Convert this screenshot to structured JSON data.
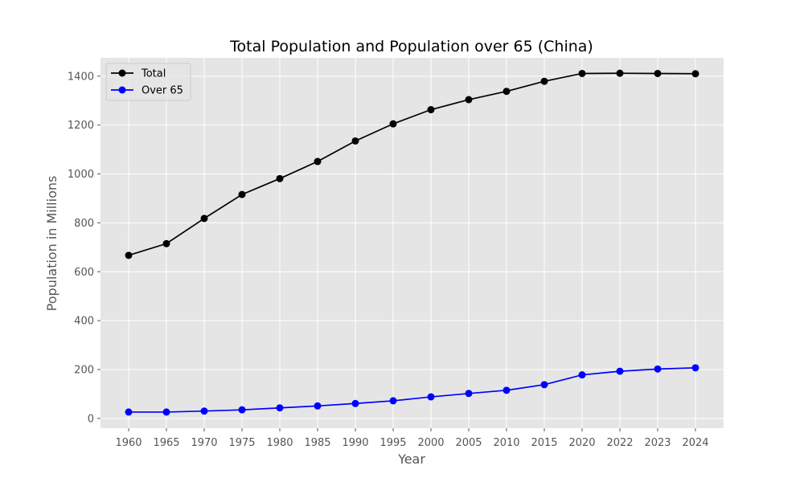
{
  "chart_data": {
    "type": "line",
    "title": "Total Population and Population over 65 (China)",
    "xlabel": "Year",
    "ylabel": "Population in Millions",
    "categories": [
      "1960",
      "1965",
      "1970",
      "1975",
      "1980",
      "1985",
      "1990",
      "1995",
      "2000",
      "2005",
      "2010",
      "2015",
      "2020",
      "2022",
      "2023",
      "2024"
    ],
    "y_ticks": [
      0,
      200,
      400,
      600,
      800,
      1000,
      1200,
      1400
    ],
    "ylim": [
      -40,
      1475
    ],
    "grid": true,
    "legend_position": "top-left",
    "series": [
      {
        "name": "Total",
        "color": "#000000",
        "values": [
          667,
          715,
          818,
          916,
          981,
          1051,
          1135,
          1205,
          1263,
          1304,
          1338,
          1379,
          1411,
          1412,
          1411,
          1410
        ]
      },
      {
        "name": "Over 65",
        "color": "#0000ff",
        "values": [
          26,
          26,
          30,
          35,
          43,
          51,
          61,
          72,
          88,
          102,
          115,
          138,
          178,
          193,
          202,
          207
        ]
      }
    ]
  }
}
